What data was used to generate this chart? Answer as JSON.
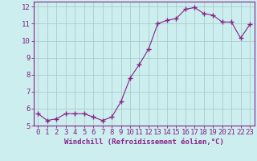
{
  "x": [
    0,
    1,
    2,
    3,
    4,
    5,
    6,
    7,
    8,
    9,
    10,
    11,
    12,
    13,
    14,
    15,
    16,
    17,
    18,
    19,
    20,
    21,
    22,
    23
  ],
  "y": [
    5.7,
    5.3,
    5.4,
    5.7,
    5.7,
    5.7,
    5.5,
    5.3,
    5.5,
    6.4,
    7.8,
    8.6,
    9.5,
    11.0,
    11.2,
    11.3,
    11.85,
    11.95,
    11.6,
    11.5,
    11.1,
    11.1,
    10.15,
    10.95
  ],
  "line_color": "#882288",
  "marker": "+",
  "marker_size": 4,
  "marker_lw": 1.0,
  "bg_color": "#cceeee",
  "grid_color": "#aacccc",
  "xlabel": "Windchill (Refroidissement éolien,°C)",
  "ylabel": "",
  "title": "",
  "xlim": [
    -0.5,
    23.5
  ],
  "ylim": [
    5.0,
    12.3
  ],
  "xtick_labels": [
    "0",
    "1",
    "2",
    "3",
    "4",
    "5",
    "6",
    "7",
    "8",
    "9",
    "10",
    "11",
    "12",
    "13",
    "14",
    "15",
    "16",
    "17",
    "18",
    "19",
    "20",
    "21",
    "22",
    "23"
  ],
  "yticks": [
    5,
    6,
    7,
    8,
    9,
    10,
    11,
    12
  ],
  "xlabel_fontsize": 6.5,
  "tick_fontsize": 6.5,
  "axis_color": "#882288",
  "spine_color": "#882288",
  "line_width": 0.8
}
